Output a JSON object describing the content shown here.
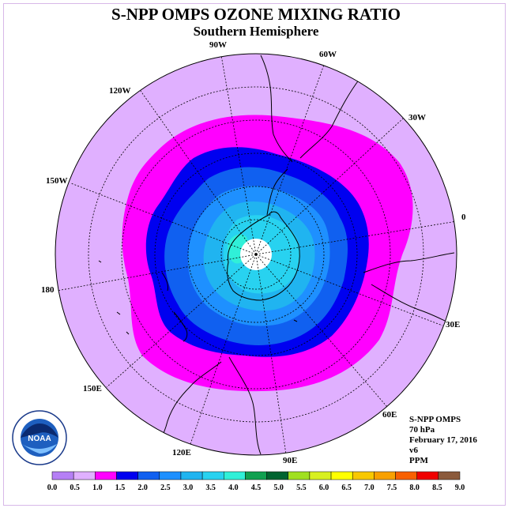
{
  "title": "S-NPP OMPS OZONE MIXING RATIO",
  "subtitle": "Southern Hemisphere",
  "longitude_labels": {
    "lon_90w": "90W",
    "lon_60w": "60W",
    "lon_30w": "30W",
    "lon_0": "0",
    "lon_30e": "30E",
    "lon_60e": "60E",
    "lon_90e": "90E",
    "lon_120e": "120E",
    "lon_150e": "150E",
    "lon_180": "180",
    "lon_150w": "150W",
    "lon_120w": "120W"
  },
  "info": {
    "instrument": "S-NPP OMPS",
    "level": "70 hPa",
    "date": "February 17, 2016",
    "version": "v6",
    "units": "PPM"
  },
  "logo_text": "NOAA",
  "colorbar": {
    "ticks": [
      "0.0",
      "0.5",
      "1.0",
      "1.5",
      "2.0",
      "2.5",
      "3.0",
      "3.5",
      "4.0",
      "4.5",
      "5.0",
      "5.5",
      "6.0",
      "6.5",
      "7.0",
      "7.5",
      "8.0",
      "8.5",
      "9.0"
    ],
    "colors": [
      "#b57ff5",
      "#e0b0ff",
      "#ff00ff",
      "#0000f0",
      "#1060f0",
      "#1e90ff",
      "#20b4f0",
      "#28d2f0",
      "#30f0d8",
      "#10a050",
      "#006430",
      "#a0e020",
      "#d8f020",
      "#ffff00",
      "#f8c800",
      "#f8a000",
      "#f86000",
      "#f00000",
      "#8b5a3c"
    ]
  },
  "map_colors": {
    "background": "#e0b0ff",
    "level_1_0": "#ff00ff",
    "level_1_5": "#0000f0",
    "level_2_0": "#1060f0",
    "level_2_5": "#1e90ff",
    "level_3_0": "#20b4f0",
    "level_3_5": "#28d2f0",
    "level_4_0": "#30f0d8",
    "missing": "#ffffff"
  }
}
